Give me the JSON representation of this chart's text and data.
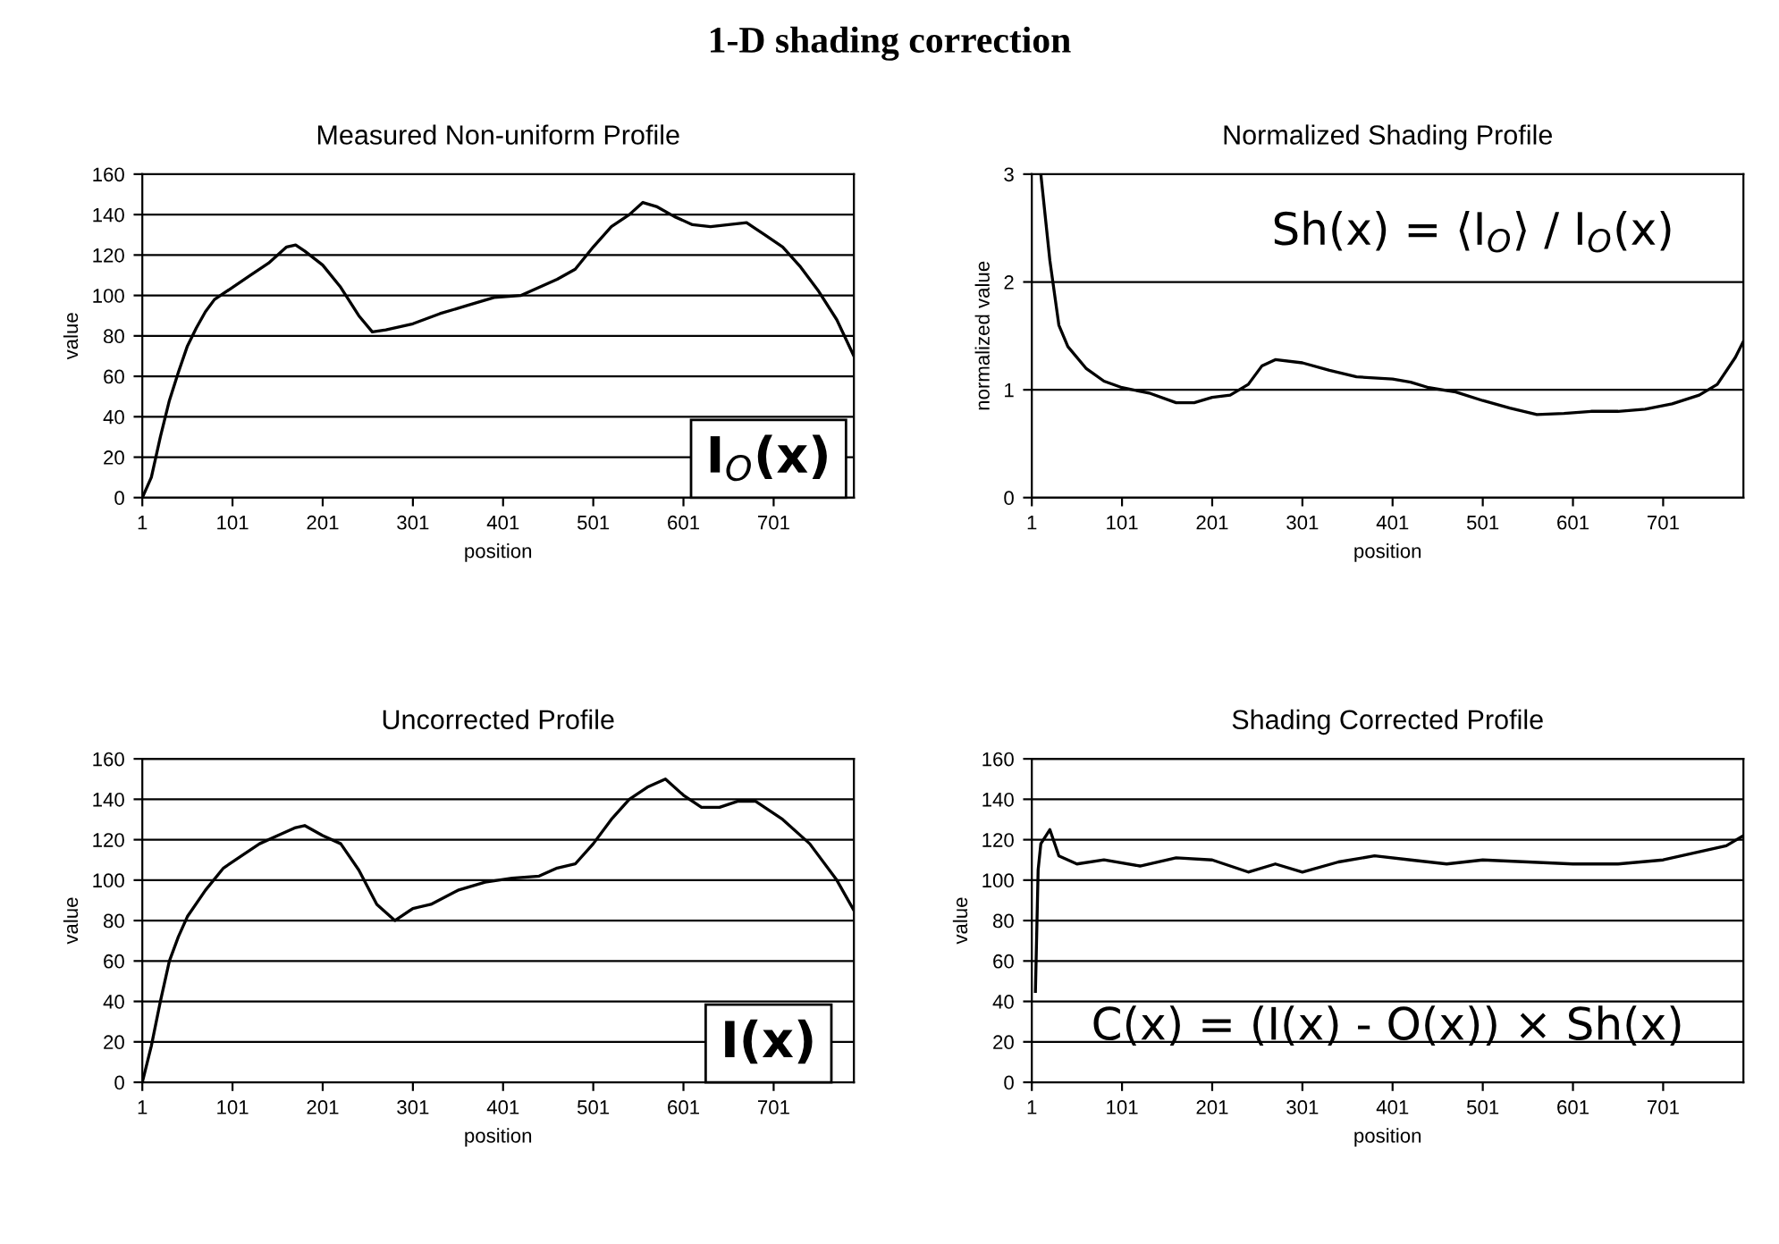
{
  "chart_data": [
    {
      "type": "other",
      "title": "1-D shading correction"
    },
    {
      "type": "line",
      "title": "Measured Non-uniform Profile",
      "xlabel": "position",
      "ylabel": "value",
      "xlim": [
        1,
        790
      ],
      "xticks": [
        1,
        101,
        201,
        301,
        401,
        501,
        601,
        701
      ],
      "ylim": [
        0,
        160
      ],
      "yticks": [
        0,
        20,
        40,
        60,
        80,
        100,
        120,
        140,
        160
      ],
      "grid": "y",
      "legend": false,
      "marker": "none",
      "line_style": "solid",
      "annotations": [
        "I$_{O}$(x)"
      ],
      "series": [
        {
          "color": "#000000",
          "x": [
            1,
            11,
            21,
            31,
            41,
            51,
            61,
            71,
            81,
            101,
            121,
            141,
            161,
            171,
            181,
            201,
            221,
            241,
            256,
            271,
            301,
            331,
            361,
            391,
            421,
            441,
            461,
            481,
            501,
            521,
            541,
            556,
            571,
            591,
            611,
            631,
            651,
            671,
            691,
            711,
            731,
            751,
            771,
            790
          ],
          "values": [
            0,
            10,
            30,
            48,
            62,
            75,
            84,
            92,
            98,
            104,
            110,
            116,
            124,
            125,
            122,
            115,
            104,
            90,
            82,
            83,
            86,
            91,
            95,
            99,
            100,
            104,
            108,
            113,
            124,
            134,
            140,
            146,
            144,
            139,
            135,
            134,
            135,
            136,
            130,
            124,
            114,
            102,
            88,
            70
          ]
        }
      ]
    },
    {
      "type": "line",
      "title": "Normalized Shading Profile",
      "xlabel": "position",
      "ylabel": "normalized value",
      "xlim": [
        1,
        790
      ],
      "xticks": [
        1,
        101,
        201,
        301,
        401,
        501,
        601,
        701
      ],
      "ylim": [
        0,
        3
      ],
      "yticks": [
        0,
        1,
        2,
        3
      ],
      "grid": "y",
      "legend": false,
      "marker": "none",
      "line_style": "solid",
      "annotations": [
        "Sh(x) = ⟨I$_{O}$⟩ / I$_{O}$(x)"
      ],
      "series": [
        {
          "color": "#000000",
          "x": [
            11,
            21,
            31,
            41,
            61,
            81,
            101,
            131,
            161,
            181,
            201,
            221,
            241,
            256,
            271,
            301,
            331,
            361,
            401,
            421,
            441,
            471,
            501,
            531,
            561,
            591,
            621,
            651,
            681,
            711,
            741,
            761,
            781,
            790
          ],
          "values": [
            3,
            2.2,
            1.6,
            1.4,
            1.2,
            1.08,
            1.02,
            0.97,
            0.88,
            0.88,
            0.93,
            0.95,
            1.05,
            1.22,
            1.28,
            1.25,
            1.18,
            1.12,
            1.1,
            1.07,
            1.02,
            0.98,
            0.9,
            0.83,
            0.77,
            0.78,
            0.8,
            0.8,
            0.82,
            0.87,
            0.95,
            1.05,
            1.3,
            1.45
          ]
        }
      ]
    },
    {
      "type": "line",
      "title": "Uncorrected Profile",
      "xlabel": "position",
      "ylabel": "value",
      "xlim": [
        1,
        790
      ],
      "xticks": [
        1,
        101,
        201,
        301,
        401,
        501,
        601,
        701
      ],
      "ylim": [
        0,
        160
      ],
      "yticks": [
        0,
        20,
        40,
        60,
        80,
        100,
        120,
        140,
        160
      ],
      "grid": "y",
      "legend": false,
      "marker": "none",
      "line_style": "solid",
      "annotations": [
        "I(x)"
      ],
      "series": [
        {
          "color": "#000000",
          "x": [
            1,
            11,
            21,
            31,
            41,
            51,
            71,
            91,
            111,
            131,
            151,
            171,
            181,
            201,
            221,
            241,
            261,
            281,
            301,
            321,
            351,
            381,
            411,
            441,
            461,
            481,
            501,
            521,
            541,
            561,
            581,
            601,
            621,
            641,
            661,
            681,
            711,
            741,
            771,
            790
          ],
          "values": [
            0,
            18,
            40,
            60,
            72,
            82,
            95,
            106,
            112,
            118,
            122,
            126,
            127,
            122,
            118,
            105,
            88,
            80,
            86,
            88,
            95,
            99,
            101,
            102,
            106,
            108,
            118,
            130,
            140,
            146,
            150,
            142,
            136,
            136,
            139,
            139,
            130,
            118,
            100,
            85
          ]
        }
      ]
    },
    {
      "type": "line",
      "title": "Shading Corrected Profile",
      "xlabel": "position",
      "ylabel": "value",
      "xlim": [
        1,
        790
      ],
      "xticks": [
        1,
        101,
        201,
        301,
        401,
        501,
        601,
        701
      ],
      "ylim": [
        0,
        160
      ],
      "yticks": [
        0,
        20,
        40,
        60,
        80,
        100,
        120,
        140,
        160
      ],
      "grid": "y",
      "legend": false,
      "marker": "none",
      "line_style": "solid",
      "annotations": [
        "C(x) = (I(x) - O(x)) × Sh(x)"
      ],
      "series": [
        {
          "color": "#000000",
          "x": [
            5,
            8,
            11,
            21,
            31,
            51,
            81,
            121,
            161,
            201,
            241,
            271,
            301,
            341,
            381,
            421,
            461,
            501,
            551,
            601,
            651,
            701,
            741,
            771,
            790
          ],
          "values": [
            45,
            105,
            118,
            125,
            112,
            108,
            110,
            107,
            111,
            110,
            104,
            108,
            104,
            109,
            112,
            110,
            108,
            110,
            109,
            108,
            108,
            110,
            114,
            117,
            122
          ]
        }
      ]
    }
  ]
}
